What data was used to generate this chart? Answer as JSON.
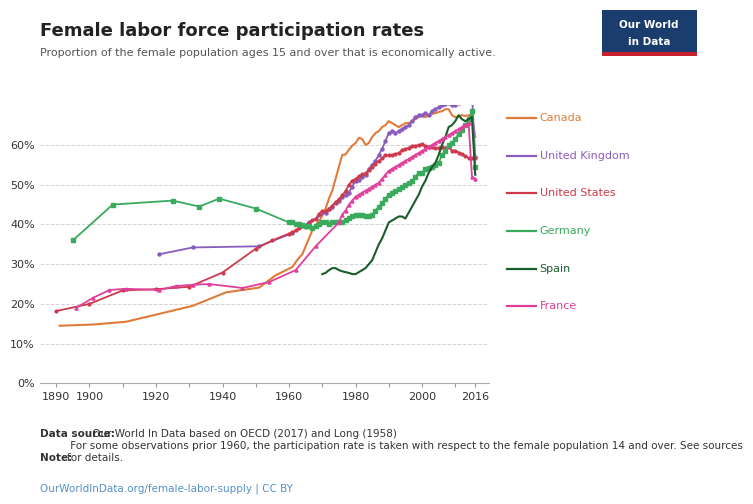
{
  "title": "Female labor force participation rates",
  "subtitle": "Proportion of the female population ages 15 and over that is economically active.",
  "datasource_bold": "Data source:",
  "datasource_rest": " Our World In Data based on OECD (2017) and Long (1958)",
  "note_bold": "Note:",
  "note_rest": " For some observations prior 1960, the participation rate is taken with respect to the female population 14 and over. See sources\nfor details.",
  "url": "OurWorldInData.org/female-labor-supply | CC BY",
  "background_color": "#ffffff",
  "plot_bg_color": "#ffffff",
  "grid_color": "#d3d3d3",
  "countries": [
    "Canada",
    "United Kingdom",
    "United States",
    "Germany",
    "Spain",
    "France"
  ],
  "colors": {
    "Canada": "#e07b39",
    "United Kingdom": "#8a5cbf",
    "United States": "#cc3a4b",
    "Germany": "#3aaa5c",
    "Spain": "#1a5c2a",
    "France": "#e0409a"
  },
  "Canada": {
    "years": [
      1891,
      1901,
      1911,
      1921,
      1931,
      1941,
      1951,
      1956,
      1961,
      1962,
      1963,
      1964,
      1965,
      1966,
      1967,
      1968,
      1969,
      1970,
      1971,
      1972,
      1973,
      1974,
      1975,
      1976,
      1977,
      1978,
      1979,
      1980,
      1981,
      1982,
      1983,
      1984,
      1985,
      1986,
      1987,
      1988,
      1989,
      1990,
      1991,
      1992,
      1993,
      1994,
      1995,
      1996,
      1997,
      1998,
      1999,
      2000,
      2001,
      2002,
      2003,
      2004,
      2005,
      2006,
      2007,
      2008,
      2009,
      2010,
      2011,
      2012,
      2013,
      2014,
      2015,
      2016
    ],
    "values": [
      14.5,
      14.8,
      15.5,
      17.5,
      19.5,
      22.9,
      24.1,
      27.2,
      29.3,
      30.5,
      31.6,
      32.5,
      34.5,
      36.5,
      38.5,
      39.8,
      40.8,
      42.2,
      44.0,
      46.5,
      48.5,
      51.5,
      54.5,
      57.5,
      57.6,
      58.8,
      59.8,
      60.5,
      61.8,
      61.5,
      60.0,
      60.5,
      62.0,
      63.0,
      63.5,
      64.5,
      65.0,
      66.0,
      65.5,
      65.0,
      64.5,
      65.0,
      65.5,
      65.5,
      66.0,
      66.5,
      67.0,
      67.5,
      67.0,
      67.5,
      67.8,
      68.0,
      68.3,
      68.5,
      69.0,
      69.0,
      67.5,
      67.0,
      67.2,
      67.5,
      67.3,
      67.5,
      67.2,
      62.0
    ]
  },
  "United Kingdom": {
    "years": [
      1921,
      1931,
      1951,
      1961,
      1966,
      1971,
      1972,
      1973,
      1974,
      1975,
      1976,
      1977,
      1978,
      1979,
      1980,
      1981,
      1982,
      1983,
      1984,
      1985,
      1986,
      1987,
      1988,
      1989,
      1990,
      1991,
      1992,
      1993,
      1994,
      1995,
      1996,
      1997,
      1998,
      1999,
      2000,
      2001,
      2002,
      2003,
      2004,
      2005,
      2006,
      2007,
      2008,
      2009,
      2010,
      2011,
      2012,
      2013,
      2014,
      2015,
      2016
    ],
    "values": [
      32.5,
      34.2,
      34.5,
      37.8,
      40.5,
      43.0,
      43.8,
      44.5,
      45.5,
      46.0,
      47.0,
      47.5,
      48.0,
      49.5,
      51.0,
      51.2,
      52.0,
      52.5,
      54.0,
      55.0,
      56.0,
      57.5,
      59.0,
      61.0,
      63.0,
      63.5,
      63.0,
      63.5,
      64.0,
      64.5,
      65.0,
      66.0,
      67.0,
      67.5,
      67.5,
      68.0,
      67.5,
      68.5,
      69.0,
      69.5,
      70.0,
      70.2,
      70.5,
      70.0,
      70.0,
      70.5,
      71.0,
      71.5,
      72.5,
      73.0,
      57.0
    ]
  },
  "United States": {
    "years": [
      1890,
      1900,
      1910,
      1920,
      1930,
      1940,
      1950,
      1955,
      1960,
      1961,
      1962,
      1963,
      1964,
      1965,
      1966,
      1967,
      1968,
      1969,
      1970,
      1971,
      1972,
      1973,
      1974,
      1975,
      1976,
      1977,
      1978,
      1979,
      1980,
      1981,
      1982,
      1983,
      1984,
      1985,
      1986,
      1987,
      1988,
      1989,
      1990,
      1991,
      1992,
      1993,
      1994,
      1995,
      1996,
      1997,
      1998,
      1999,
      2000,
      2001,
      2002,
      2003,
      2004,
      2005,
      2006,
      2007,
      2008,
      2009,
      2010,
      2011,
      2012,
      2013,
      2014,
      2015,
      2016
    ],
    "values": [
      18.2,
      20.0,
      23.4,
      23.7,
      24.3,
      27.9,
      33.9,
      36.0,
      37.7,
      38.1,
      38.5,
      39.0,
      39.5,
      39.3,
      40.3,
      41.1,
      41.3,
      42.7,
      43.3,
      43.4,
      43.9,
      44.7,
      45.7,
      46.3,
      47.3,
      48.4,
      50.0,
      51.0,
      51.5,
      52.1,
      52.6,
      52.9,
      53.6,
      54.5,
      55.3,
      56.0,
      56.6,
      57.4,
      57.5,
      57.4,
      57.8,
      57.9,
      58.8,
      58.9,
      59.3,
      59.8,
      59.8,
      60.0,
      60.2,
      59.8,
      59.6,
      59.5,
      59.2,
      59.3,
      59.4,
      59.3,
      59.5,
      58.6,
      58.6,
      58.1,
      57.7,
      57.2,
      56.7,
      56.7,
      56.8
    ]
  },
  "Germany": {
    "years": [
      1895,
      1907,
      1925,
      1933,
      1939,
      1950,
      1960,
      1961,
      1962,
      1963,
      1964,
      1965,
      1966,
      1967,
      1968,
      1969,
      1970,
      1971,
      1972,
      1973,
      1974,
      1975,
      1976,
      1977,
      1978,
      1979,
      1980,
      1981,
      1982,
      1983,
      1984,
      1985,
      1986,
      1987,
      1988,
      1989,
      1990,
      1991,
      1992,
      1993,
      1994,
      1995,
      1996,
      1997,
      1998,
      1999,
      2000,
      2001,
      2002,
      2003,
      2004,
      2005,
      2006,
      2007,
      2008,
      2009,
      2010,
      2011,
      2012,
      2013,
      2014,
      2015,
      2016
    ],
    "values": [
      36.0,
      45.0,
      46.0,
      44.5,
      46.5,
      44.0,
      40.5,
      40.5,
      40.2,
      40.0,
      39.8,
      39.5,
      39.5,
      39.0,
      39.5,
      40.0,
      40.5,
      40.5,
      40.0,
      40.5,
      40.5,
      40.5,
      40.5,
      41.0,
      41.5,
      42.0,
      42.5,
      42.5,
      42.5,
      42.0,
      42.0,
      42.5,
      43.5,
      44.5,
      45.5,
      46.5,
      47.5,
      48.0,
      48.5,
      48.8,
      49.5,
      50.0,
      50.5,
      51.0,
      52.0,
      53.0,
      53.0,
      54.0,
      54.2,
      54.5,
      55.0,
      55.5,
      57.5,
      58.5,
      60.0,
      60.5,
      61.5,
      62.8,
      63.8,
      65.0,
      66.5,
      68.5,
      54.5
    ]
  },
  "Spain": {
    "years": [
      1970,
      1971,
      1972,
      1973,
      1974,
      1975,
      1976,
      1977,
      1978,
      1979,
      1980,
      1981,
      1982,
      1983,
      1984,
      1985,
      1986,
      1987,
      1988,
      1989,
      1990,
      1991,
      1992,
      1993,
      1994,
      1995,
      1996,
      1997,
      1998,
      1999,
      2000,
      2001,
      2002,
      2003,
      2004,
      2005,
      2006,
      2007,
      2008,
      2009,
      2010,
      2011,
      2012,
      2013,
      2014,
      2015,
      2016
    ],
    "values": [
      27.5,
      27.8,
      28.5,
      29.0,
      29.0,
      28.5,
      28.2,
      28.0,
      27.8,
      27.5,
      27.5,
      28.0,
      28.5,
      29.0,
      30.0,
      31.0,
      33.0,
      35.0,
      36.5,
      38.5,
      40.5,
      41.0,
      41.5,
      42.0,
      42.0,
      41.5,
      43.0,
      44.5,
      46.0,
      47.5,
      49.5,
      51.0,
      53.0,
      54.5,
      55.5,
      57.5,
      60.0,
      62.0,
      64.5,
      65.0,
      66.0,
      67.5,
      66.5,
      66.0,
      66.5,
      67.0,
      52.5
    ]
  },
  "France": {
    "years": [
      1896,
      1901,
      1906,
      1911,
      1921,
      1926,
      1931,
      1936,
      1946,
      1954,
      1962,
      1968,
      1975,
      1976,
      1977,
      1978,
      1979,
      1980,
      1981,
      1982,
      1983,
      1984,
      1985,
      1986,
      1987,
      1988,
      1989,
      1990,
      1991,
      1992,
      1993,
      1994,
      1995,
      1996,
      1997,
      1998,
      1999,
      2000,
      2001,
      2002,
      2003,
      2004,
      2005,
      2006,
      2007,
      2008,
      2009,
      2010,
      2011,
      2012,
      2013,
      2014,
      2015,
      2016
    ],
    "values": [
      19.0,
      21.5,
      23.5,
      23.8,
      23.5,
      24.5,
      24.8,
      25.0,
      24.0,
      25.5,
      28.5,
      34.5,
      40.5,
      42.5,
      43.5,
      45.0,
      46.0,
      47.0,
      47.5,
      48.0,
      48.5,
      49.0,
      49.5,
      50.0,
      50.5,
      51.5,
      52.5,
      53.5,
      54.0,
      54.5,
      55.0,
      55.5,
      56.0,
      56.5,
      57.0,
      57.5,
      58.0,
      58.5,
      59.0,
      59.5,
      60.0,
      60.5,
      61.0,
      61.5,
      62.0,
      62.5,
      63.0,
      63.5,
      64.0,
      64.5,
      65.0,
      65.5,
      52.0,
      51.5
    ]
  }
}
